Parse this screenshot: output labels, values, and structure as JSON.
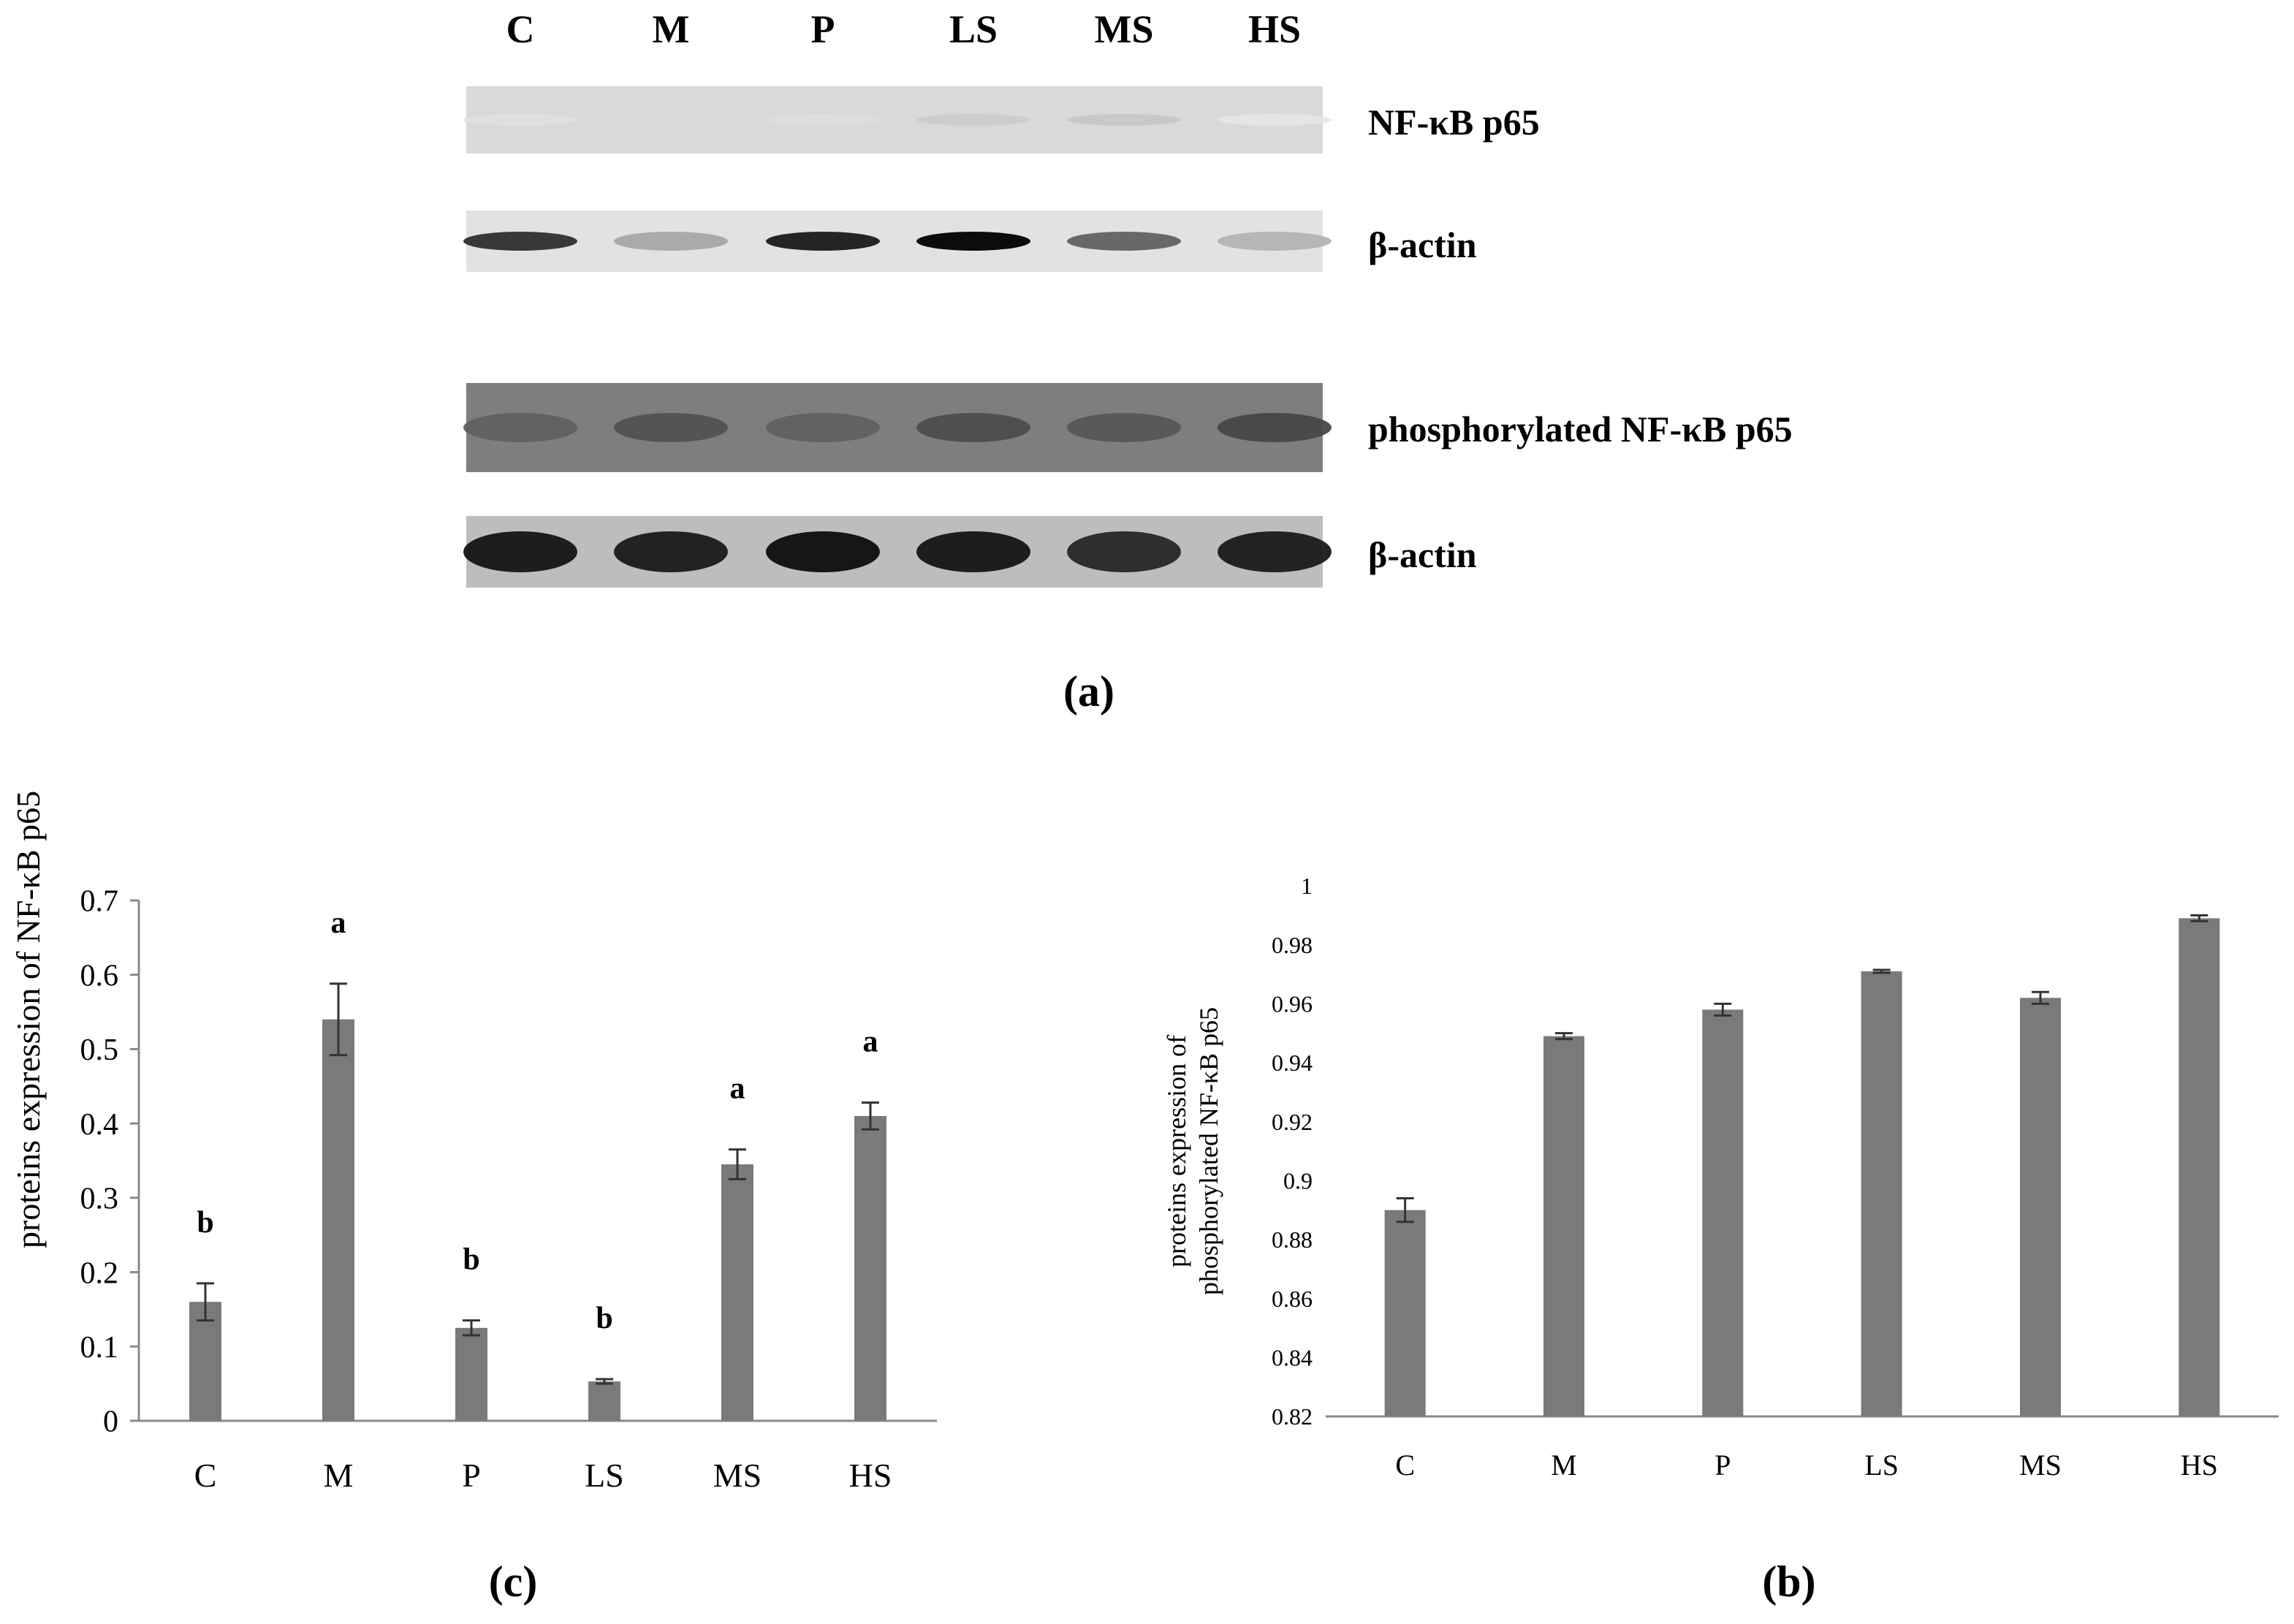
{
  "blot": {
    "lanes": [
      "C",
      "M",
      "P",
      "LS",
      "MS",
      "HS"
    ],
    "rows": [
      {
        "label": "NF-κB p65",
        "intensity": [
          0.12,
          0.14,
          0.13,
          0.2,
          0.22,
          0.1
        ],
        "background": "#d9d9d9"
      },
      {
        "label": "β-actin",
        "intensity": [
          0.82,
          0.35,
          0.9,
          1.0,
          0.62,
          0.3
        ],
        "background": "#e2e2e2"
      },
      {
        "label": "phosphorylated NF-κB p65",
        "intensity": [
          0.62,
          0.68,
          0.62,
          0.7,
          0.66,
          0.72
        ],
        "background": "#7e7e7e"
      },
      {
        "label": "β-actin",
        "intensity": [
          0.92,
          0.9,
          0.95,
          0.92,
          0.85,
          0.9
        ],
        "background": "#bdbdbd"
      }
    ],
    "panel_label": "(a)"
  },
  "bar_color": "#7a7a7a",
  "chart_data": [
    {
      "type": "bar",
      "panel_label": "(c)",
      "categories": [
        "C",
        "M",
        "P",
        "LS",
        "MS",
        "HS"
      ],
      "values": [
        0.16,
        0.54,
        0.125,
        0.053,
        0.345,
        0.41
      ],
      "errors": [
        0.025,
        0.048,
        0.01,
        0.003,
        0.02,
        0.018
      ],
      "significance": [
        "b",
        "a",
        "b",
        "b",
        "a",
        "a"
      ],
      "ylabel": "proteins expression of NF-κB p65",
      "xlabel": "",
      "ylim": [
        0,
        0.7
      ],
      "yticks": [
        "0",
        "0.1",
        "0.2",
        "0.3",
        "0.4",
        "0.5",
        "0.6",
        "0.7"
      ],
      "grid": false
    },
    {
      "type": "bar",
      "panel_label": "(b)",
      "categories": [
        "C",
        "M",
        "P",
        "LS",
        "MS",
        "HS"
      ],
      "values": [
        0.89,
        0.949,
        0.958,
        0.971,
        0.962,
        0.989
      ],
      "errors": [
        0.004,
        0.001,
        0.002,
        0.0005,
        0.002,
        0.001
      ],
      "ylabel_lines": [
        "proteins expression of",
        "phosphorylated NF-κB p65"
      ],
      "xlabel": "",
      "ylim": [
        0.82,
        1.0
      ],
      "yticks": [
        "0.82",
        "0.84",
        "0.86",
        "0.88",
        "0.9",
        "0.92",
        "0.94",
        "0.96",
        "0.98",
        "1"
      ],
      "grid": false
    }
  ]
}
